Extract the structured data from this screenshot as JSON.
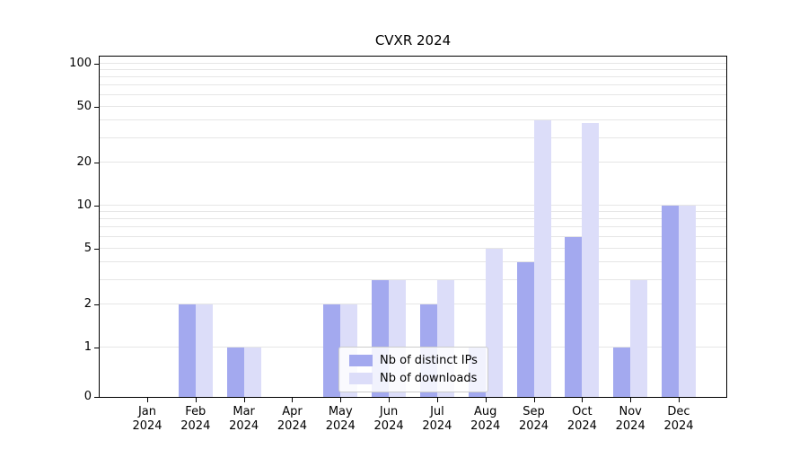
{
  "chart_data": {
    "type": "bar",
    "title": "CVXR 2024",
    "categories": [
      "Jan 2024",
      "Feb 2024",
      "Mar 2024",
      "Apr 2024",
      "May 2024",
      "Jun 2024",
      "Jul 2024",
      "Aug 2024",
      "Sep 2024",
      "Oct 2024",
      "Nov 2024",
      "Dec 2024"
    ],
    "series": [
      {
        "name": "Nb of distinct IPs",
        "color": "#a3a9ef",
        "values": [
          0,
          2,
          1,
          0,
          2,
          3,
          2,
          1,
          4,
          6,
          1,
          10
        ]
      },
      {
        "name": "Nb of downloads",
        "color": "#dcddf9",
        "values": [
          0,
          2,
          1,
          0,
          2,
          3,
          3,
          5,
          40,
          38,
          3,
          10
        ]
      }
    ],
    "yscale": "symlog",
    "yticks": [
      0,
      1,
      2,
      5,
      10,
      20,
      50,
      100
    ],
    "minor_gridlines": [
      3,
      4,
      6,
      7,
      8,
      9,
      30,
      40,
      60,
      70,
      80,
      90
    ],
    "ylim": [
      0,
      130
    ],
    "grid": true,
    "legend_position": "lower-center-inside",
    "grid_color": "#e6e6e6",
    "axis_color": "#000000",
    "background": "#ffffff"
  }
}
